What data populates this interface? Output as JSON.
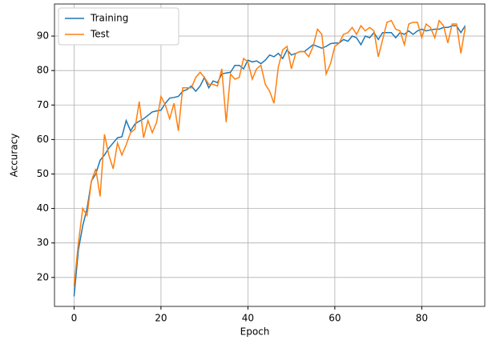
{
  "chart_data": {
    "type": "line",
    "xlabel": "Epoch",
    "ylabel": "Accuracy",
    "x": [
      0,
      1,
      2,
      3,
      4,
      5,
      6,
      7,
      8,
      9,
      10,
      11,
      12,
      13,
      14,
      15,
      16,
      17,
      18,
      19,
      20,
      21,
      22,
      23,
      24,
      25,
      26,
      27,
      28,
      29,
      30,
      31,
      32,
      33,
      34,
      35,
      36,
      37,
      38,
      39,
      40,
      41,
      42,
      43,
      44,
      45,
      46,
      47,
      48,
      49,
      50,
      51,
      52,
      53,
      54,
      55,
      56,
      57,
      58,
      59,
      60,
      61,
      62,
      63,
      64,
      65,
      66,
      67,
      68,
      69,
      70,
      71,
      72,
      73,
      74,
      75,
      76,
      77,
      78,
      79,
      80,
      81,
      82,
      83,
      84,
      85,
      86,
      87,
      88,
      89,
      90
    ],
    "series": [
      {
        "name": "Training",
        "color": "#1f77b4",
        "values": [
          14.5,
          28,
          35,
          40,
          48,
          50,
          54,
          55.5,
          57.5,
          59,
          60.5,
          60.8,
          65.5,
          62.5,
          64.5,
          65.3,
          66,
          67,
          68,
          68.3,
          68.5,
          70.5,
          72,
          72.2,
          72.5,
          74,
          74.5,
          75.5,
          74,
          75.5,
          78,
          75,
          77,
          76.5,
          79,
          79.3,
          79.5,
          81.5,
          81.5,
          80.5,
          83,
          82.5,
          82.8,
          82,
          83,
          84.5,
          84,
          85,
          83.5,
          86,
          84.5,
          85,
          85.5,
          85.5,
          86.5,
          87.5,
          87,
          86.5,
          87,
          87.8,
          88,
          88,
          89,
          88.5,
          90,
          89.5,
          87.5,
          90,
          89.5,
          91,
          89,
          91,
          91,
          91,
          89.5,
          91,
          90.5,
          91.5,
          90.5,
          91.5,
          92,
          91.5,
          91.8,
          92,
          92,
          92.5,
          92.5,
          93,
          93,
          91,
          93
        ]
      },
      {
        "name": "Test",
        "color": "#ff7f0e",
        "values": [
          17.5,
          30,
          40,
          38,
          48,
          51.5,
          43.5,
          61.5,
          55.5,
          51.5,
          59,
          55.5,
          58.5,
          62,
          63,
          71,
          60.5,
          65.5,
          62,
          65,
          72.5,
          70,
          66,
          70.5,
          62.5,
          75,
          75,
          75,
          78,
          79.5,
          78,
          76,
          76,
          75.5,
          80.5,
          65,
          79,
          77.5,
          78,
          83.5,
          82.5,
          77.5,
          80.5,
          81.5,
          76,
          74,
          70.5,
          81,
          86,
          87,
          80.5,
          85,
          85.5,
          85.5,
          84,
          87,
          92,
          90.5,
          79,
          82,
          87,
          88,
          90.5,
          91,
          92.5,
          90.5,
          93,
          91.5,
          92.5,
          91.5,
          84,
          89,
          94,
          94.5,
          92,
          91.5,
          87.5,
          93.5,
          94,
          94,
          89.5,
          93.5,
          92.5,
          89.5,
          94.5,
          93,
          88,
          93.5,
          93.5,
          85,
          92.5
        ]
      }
    ],
    "xlim": [
      -4.5,
      94.5
    ],
    "ylim": [
      11.6,
      99.3
    ],
    "xticks": [
      0,
      20,
      40,
      60,
      80
    ],
    "yticks": [
      20,
      30,
      40,
      50,
      60,
      70,
      80,
      90
    ],
    "grid": true,
    "legend": "upper-left"
  }
}
